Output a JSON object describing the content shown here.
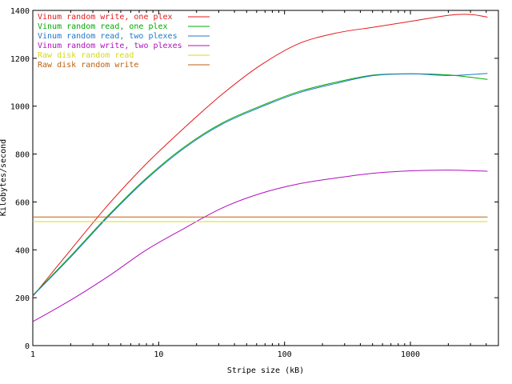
{
  "chart_data": {
    "type": "line",
    "title": "",
    "xlabel": "Stripe size (kB)",
    "ylabel": "Kilobytes/second",
    "xscale": "log",
    "xlim": [
      1,
      5000
    ],
    "ylim": [
      0,
      1400
    ],
    "xticks": [
      1,
      10,
      100,
      1000
    ],
    "xtick_labels": [
      "1",
      "10",
      "100",
      "1000"
    ],
    "yticks": [
      0,
      200,
      400,
      600,
      800,
      1000,
      1200,
      1400
    ],
    "ytick_labels": [
      "0",
      "200",
      "400",
      "600",
      "800",
      "1000",
      "1200",
      "1400"
    ],
    "grid": false,
    "legend_position": "top-left",
    "series": [
      {
        "name": "Vinum random write, one plex",
        "color": "#e41a1c",
        "points": [
          [
            1,
            205
          ],
          [
            2,
            400
          ],
          [
            4,
            590
          ],
          [
            8,
            760
          ],
          [
            16,
            910
          ],
          [
            32,
            1050
          ],
          [
            64,
            1170
          ],
          [
            128,
            1260
          ],
          [
            256,
            1305
          ],
          [
            512,
            1330
          ],
          [
            1024,
            1355
          ],
          [
            2048,
            1380
          ],
          [
            3000,
            1383
          ],
          [
            4096,
            1372
          ]
        ]
      },
      {
        "name": "Vinum random read, one plex",
        "color": "#00aa00",
        "points": [
          [
            1,
            210
          ],
          [
            2,
            375
          ],
          [
            4,
            545
          ],
          [
            8,
            700
          ],
          [
            16,
            830
          ],
          [
            32,
            930
          ],
          [
            64,
            1000
          ],
          [
            128,
            1060
          ],
          [
            256,
            1100
          ],
          [
            512,
            1130
          ],
          [
            1024,
            1135
          ],
          [
            2048,
            1130
          ],
          [
            4096,
            1112
          ]
        ]
      },
      {
        "name": "Vinum random read, two plexes",
        "color": "#1f77c8",
        "points": [
          [
            1,
            208
          ],
          [
            2,
            370
          ],
          [
            4,
            540
          ],
          [
            8,
            695
          ],
          [
            16,
            825
          ],
          [
            32,
            925
          ],
          [
            64,
            995
          ],
          [
            128,
            1055
          ],
          [
            256,
            1095
          ],
          [
            512,
            1128
          ],
          [
            1024,
            1135
          ],
          [
            2048,
            1128
          ],
          [
            4096,
            1137
          ]
        ]
      },
      {
        "name": "Vinum random write, two plexes",
        "color": "#b010c0",
        "points": [
          [
            1,
            100
          ],
          [
            2,
            190
          ],
          [
            4,
            290
          ],
          [
            8,
            400
          ],
          [
            16,
            490
          ],
          [
            32,
            575
          ],
          [
            64,
            635
          ],
          [
            128,
            675
          ],
          [
            256,
            700
          ],
          [
            512,
            720
          ],
          [
            1024,
            730
          ],
          [
            2048,
            733
          ],
          [
            4096,
            728
          ]
        ]
      },
      {
        "name": "Raw disk random read",
        "color": "#d8d820",
        "points": [
          [
            1,
            518
          ],
          [
            4096,
            518
          ]
        ]
      },
      {
        "name": "Raw disk random write",
        "color": "#c06010",
        "points": [
          [
            1,
            537
          ],
          [
            4096,
            537
          ]
        ]
      }
    ]
  }
}
